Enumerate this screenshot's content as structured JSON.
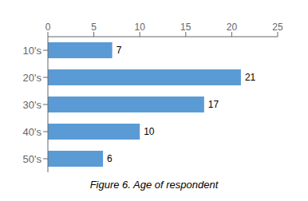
{
  "chart_data": {
    "type": "bar",
    "title": "Figure 6. Age of respondent",
    "categories": [
      "10's",
      "20's",
      "30's",
      "40's",
      "50's"
    ],
    "values": [
      7,
      21,
      17,
      10,
      6
    ],
    "color": "#5B9BD5",
    "orientation": "horizontal",
    "xlim": [
      0,
      25
    ],
    "xticks": [
      0,
      5,
      10,
      15,
      20,
      25
    ],
    "grid": false,
    "data_labels": true
  }
}
